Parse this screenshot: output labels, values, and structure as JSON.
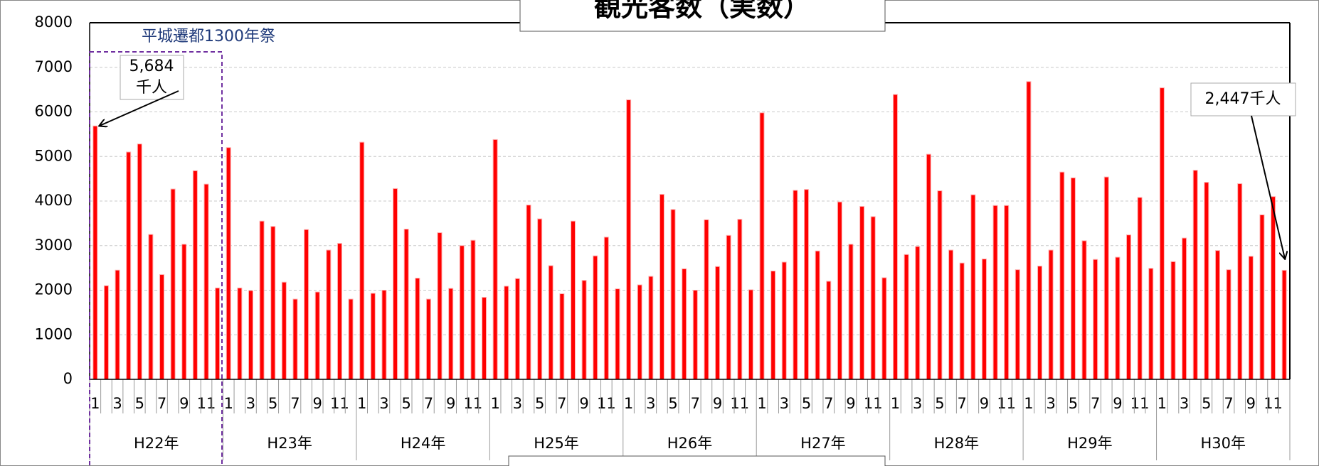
{
  "chart_data": {
    "type": "bar",
    "title": "観光客数（実数）",
    "annotations": [
      "平城遷都1300年祭",
      "5,684",
      "千人",
      "2,447千人"
    ],
    "groups": [
      "H22年",
      "H23年",
      "H24年",
      "H25年",
      "H26年",
      "H27年",
      "H28年",
      "H29年",
      "H30年"
    ],
    "categories": [
      "1",
      null,
      "3",
      null,
      "5",
      null,
      "7",
      null,
      "9",
      null,
      "11",
      null,
      "1",
      null,
      "3",
      null,
      "5",
      null,
      "7",
      null,
      "9",
      null,
      "11",
      null,
      "1",
      null,
      "3",
      null,
      "5",
      null,
      "7",
      null,
      "9",
      null,
      "11",
      null,
      "1",
      null,
      "3",
      null,
      "5",
      null,
      "7",
      null,
      "9",
      null,
      "11",
      null,
      "1",
      null,
      "3",
      null,
      "5",
      null,
      "7",
      null,
      "9",
      null,
      "11",
      null,
      "1",
      null,
      "3",
      null,
      "5",
      null,
      "7",
      null,
      "9",
      null,
      "11",
      null,
      "1",
      null,
      "3",
      null,
      "5",
      null,
      "7",
      null,
      "9",
      null,
      "11",
      null,
      "1",
      null,
      "3",
      null,
      "5",
      null,
      "7",
      null,
      "9",
      null,
      "11",
      null,
      "1",
      null,
      "3",
      null,
      "5",
      null,
      "7",
      null,
      "9",
      null,
      "11",
      null
    ],
    "values": [
      5684,
      2100,
      2450,
      5100,
      5280,
      3250,
      2350,
      4270,
      3030,
      4680,
      4380,
      2050,
      5200,
      2050,
      1990,
      3550,
      3430,
      2180,
      1800,
      3360,
      1960,
      2900,
      3050,
      1800,
      5320,
      1930,
      2000,
      4280,
      3370,
      2270,
      1800,
      3290,
      2040,
      3000,
      3120,
      1840,
      5380,
      2090,
      2260,
      3910,
      3600,
      2550,
      1920,
      3550,
      2220,
      2770,
      3190,
      2030,
      6270,
      2120,
      2310,
      4150,
      3810,
      2480,
      2000,
      3580,
      2530,
      3230,
      3590,
      2010,
      5980,
      2430,
      2630,
      4240,
      4260,
      2880,
      2200,
      3980,
      3030,
      3880,
      3650,
      2280,
      6390,
      2800,
      2980,
      5050,
      4230,
      2900,
      2610,
      4140,
      2700,
      3900,
      3900,
      2460,
      6680,
      2540,
      2900,
      4650,
      4520,
      3110,
      2690,
      4540,
      2740,
      3240,
      4080,
      2490,
      6540,
      2640,
      3170,
      4690,
      4420,
      2890,
      2460,
      4390,
      2760,
      3690,
      4100,
      2447
    ],
    "color": "#ff0000",
    "ylim": [
      0,
      8000
    ],
    "yticks": [
      0,
      1000,
      2000,
      3000,
      4000,
      5000,
      6000,
      7000,
      8000
    ],
    "grid": true
  }
}
